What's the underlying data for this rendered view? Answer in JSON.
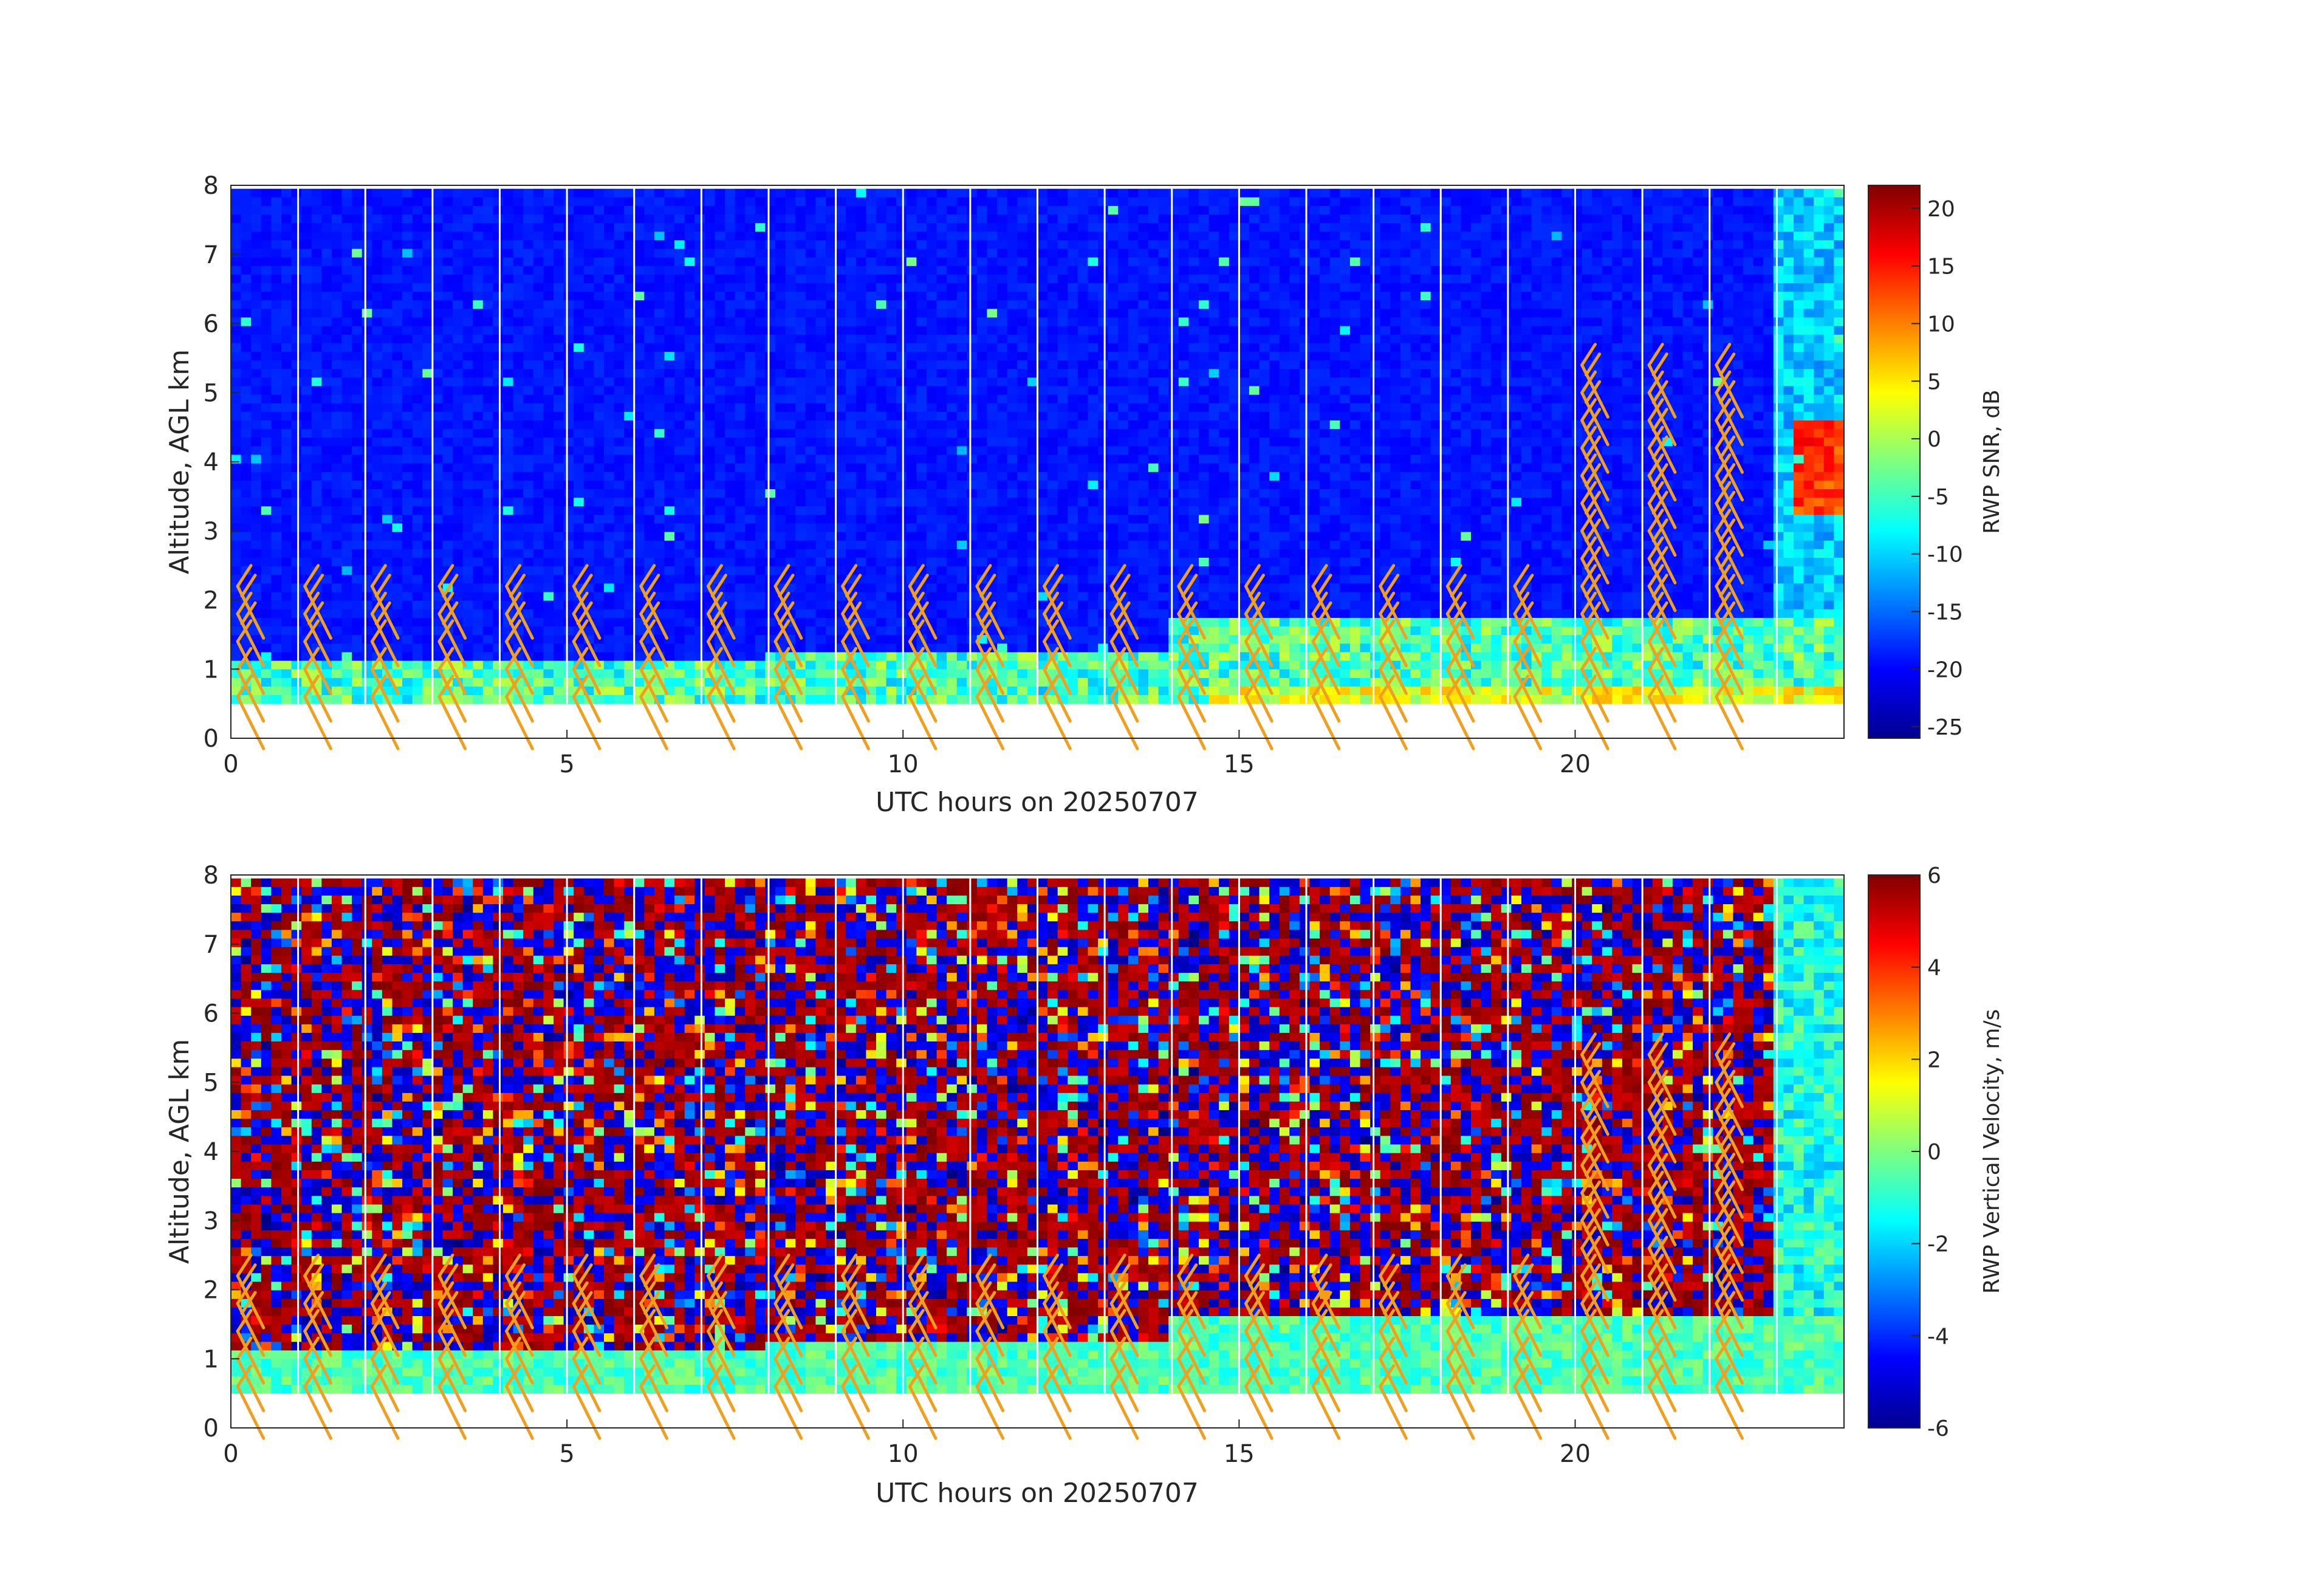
{
  "chart_data": [
    {
      "type": "heatmap",
      "title": "",
      "xlabel": "UTC hours on 20250707",
      "ylabel": "Altitude, AGL km",
      "xlim": [
        0,
        24
      ],
      "ylim": [
        0,
        8
      ],
      "xticks": [
        "0",
        "5",
        "10",
        "15",
        "20"
      ],
      "yticks": [
        "0",
        "1",
        "2",
        "3",
        "4",
        "5",
        "6",
        "7",
        "8"
      ],
      "colorbar": {
        "label": "RWP SNR, dB",
        "range": [
          -26,
          22
        ],
        "ticks": [
          "20",
          "15",
          "10",
          "5",
          "0",
          "-5",
          "-10",
          "-15",
          "-20",
          "-25"
        ],
        "colormap": "jet"
      },
      "overlay": "orange wind barbs"
    },
    {
      "type": "heatmap",
      "title": "",
      "xlabel": "UTC hours on 20250707",
      "ylabel": "Altitude, AGL km",
      "xlim": [
        0,
        24
      ],
      "ylim": [
        0,
        8
      ],
      "xticks": [
        "0",
        "5",
        "10",
        "15",
        "20"
      ],
      "yticks": [
        "0",
        "1",
        "2",
        "3",
        "4",
        "5",
        "6",
        "7",
        "8"
      ],
      "colorbar": {
        "label": "RWP Vertical Velocity, m/s",
        "range": [
          -6,
          6
        ],
        "ticks": [
          "6",
          "4",
          "2",
          "0",
          "-2",
          "-4",
          "-6"
        ],
        "colormap": "jet"
      },
      "overlay": "orange wind barbs"
    }
  ]
}
